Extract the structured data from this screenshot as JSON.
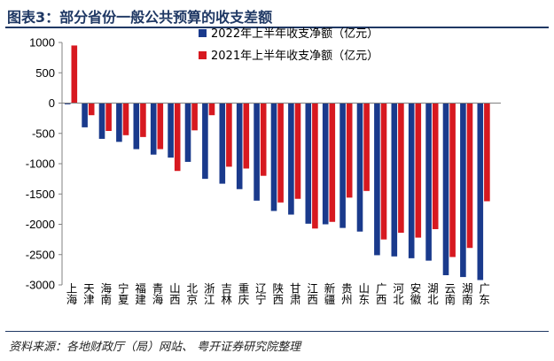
{
  "title": "图表3：部分省份一般公共预算的收支差额",
  "source": "资料来源：各地财政厅（局）网站、 粤开证券研究院整理",
  "colors": {
    "series2022": "#1a3a8c",
    "series2021": "#d71920"
  },
  "chart_data": {
    "type": "bar",
    "categories": [
      "上海",
      "天津",
      "海南",
      "宁夏",
      "福建",
      "青海",
      "山西",
      "北京",
      "浙江",
      "吉林",
      "重庆",
      "辽宁",
      "陕西",
      "甘肃",
      "江西",
      "新疆",
      "贵州",
      "山东",
      "广西",
      "河北",
      "安徽",
      "湖北",
      "云南",
      "湖南",
      "广东"
    ],
    "series": [
      {
        "name": "2022年上半年收支净额（亿元）",
        "values": [
          -20,
          -400,
          -590,
          -640,
          -760,
          -850,
          -900,
          -970,
          -1250,
          -1330,
          -1420,
          -1610,
          -1780,
          -1840,
          -1990,
          -2000,
          -2060,
          -2120,
          -2510,
          -2530,
          -2560,
          -2600,
          -2840,
          -2870,
          -2920
        ]
      },
      {
        "name": "2021年上半年收支净额（亿元）",
        "values": [
          950,
          -200,
          -460,
          -530,
          -560,
          -760,
          -1120,
          -450,
          -200,
          -1050,
          -1080,
          -1200,
          -1640,
          -1580,
          -2070,
          -1960,
          -1560,
          -1450,
          -2250,
          -2140,
          -2220,
          -2080,
          -2540,
          -2390,
          -1620
        ]
      }
    ],
    "ylim": [
      -3000,
      1000
    ],
    "yticks": [
      1000,
      500,
      0,
      -500,
      -1000,
      -1500,
      -2000,
      -2500,
      -3000
    ],
    "xlabel": "",
    "ylabel": "",
    "legend": "top-left"
  }
}
